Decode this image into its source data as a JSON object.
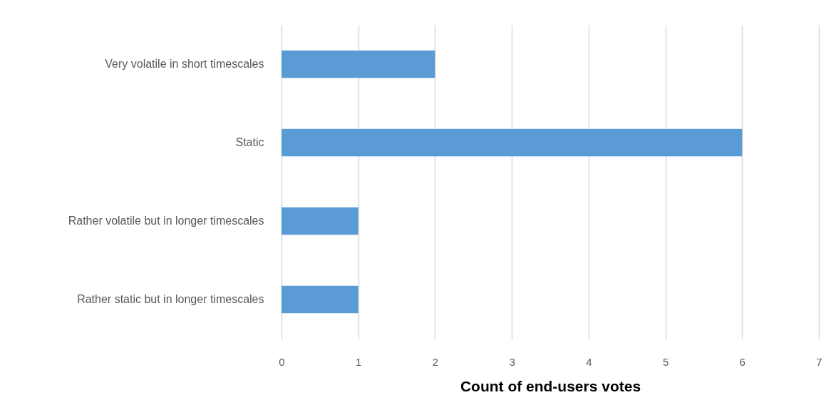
{
  "chart_data": {
    "type": "bar",
    "orientation": "horizontal",
    "xlabel": "Count of end-users votes",
    "categories": [
      "Very volatile in short timescales",
      "Static",
      "Rather volatile but in longer timescales",
      "Rather static but in longer timescales"
    ],
    "values": [
      2,
      6,
      1,
      1
    ],
    "color": "#5b9bd5",
    "xlim": [
      0,
      7
    ],
    "xticks": [
      0,
      1,
      2,
      3,
      4,
      5,
      6,
      7
    ],
    "grid": "x"
  }
}
